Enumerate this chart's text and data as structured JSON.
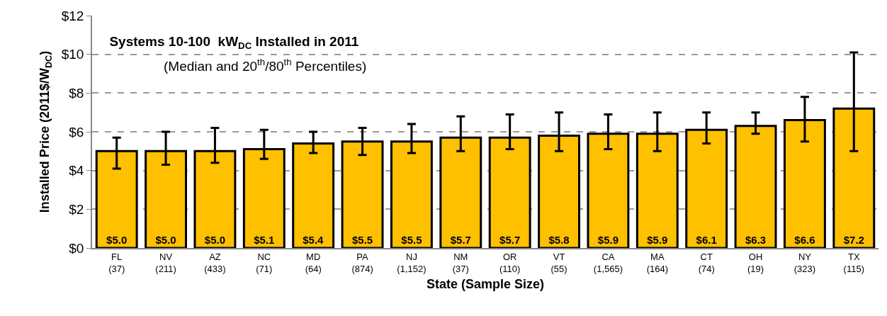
{
  "chart_data": {
    "type": "bar",
    "title": "Systems 10-100  kW$_{DC}$ Installed in 2011",
    "subtitle": "(Median and 20$^{th}$/80$^{th}$ Percentiles)",
    "xlabel": "State (Sample Size)",
    "ylabel": "Installed Price (2011$/W$_{DC}$)",
    "categories": [
      "FL\n(37)",
      "NV\n(211)",
      "AZ\n(433)",
      "NC\n(71)",
      "MD\n(64)",
      "PA\n(874)",
      "NJ\n(1,152)",
      "NM\n(37)",
      "OR\n(110)",
      "VT\n(55)",
      "CA\n(1,565)",
      "MA\n(164)",
      "CT\n(74)",
      "OH\n(19)",
      "NY\n(323)",
      "TX\n(115)"
    ],
    "values": [
      5.0,
      5.0,
      5.0,
      5.1,
      5.4,
      5.5,
      5.5,
      5.7,
      5.7,
      5.8,
      5.9,
      5.9,
      6.1,
      6.3,
      6.6,
      7.2
    ],
    "value_labels": [
      "$5.0",
      "$5.0",
      "$5.0",
      "$5.1",
      "$5.4",
      "$5.5",
      "$5.5",
      "$5.7",
      "$5.7",
      "$5.8",
      "$5.9",
      "$5.9",
      "$6.1",
      "$6.3",
      "$6.6",
      "$7.2"
    ],
    "errors": [
      [
        4.1,
        5.7
      ],
      [
        4.3,
        6.0
      ],
      [
        4.4,
        6.2
      ],
      [
        4.6,
        6.1
      ],
      [
        4.9,
        6.0
      ],
      [
        4.8,
        6.2
      ],
      [
        4.9,
        6.4
      ],
      [
        5.0,
        6.8
      ],
      [
        5.1,
        6.9
      ],
      [
        5.0,
        7.0
      ],
      [
        5.1,
        6.9
      ],
      [
        5.0,
        7.0
      ],
      [
        5.4,
        7.0
      ],
      [
        5.9,
        7.0
      ],
      [
        5.5,
        7.8
      ],
      [
        5.0,
        10.1
      ]
    ],
    "color": "#ffc000",
    "ylim": [
      0,
      12
    ],
    "yticks": [
      {
        "value": 0,
        "label": "$0"
      },
      {
        "value": 2,
        "label": "$2"
      },
      {
        "value": 4,
        "label": "$4"
      },
      {
        "value": 6,
        "label": "$6"
      },
      {
        "value": 8,
        "label": "$8"
      },
      {
        "value": 10,
        "label": "$10"
      },
      {
        "value": 12,
        "label": "$12"
      }
    ],
    "grid": "y"
  }
}
